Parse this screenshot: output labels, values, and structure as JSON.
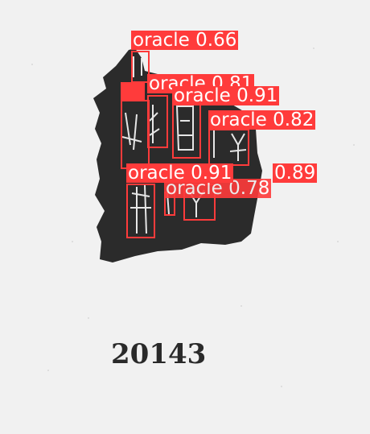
{
  "colors": {
    "background": "#f1f1f1",
    "fragment": "#2b2b2b",
    "detection": "#ff3b3b",
    "label_text": "#ffffff"
  },
  "catalog_number": "20143",
  "detections": [
    {
      "label": "oracle 0.66"
    },
    {
      "label": "oracle 0.81"
    },
    {
      "label": "oracle 0.91"
    },
    {
      "label": "oracle 0.82"
    },
    {
      "label": "oracle 0.91"
    },
    {
      "label": "0.89"
    },
    {
      "label": "oracle 0.78"
    }
  ]
}
